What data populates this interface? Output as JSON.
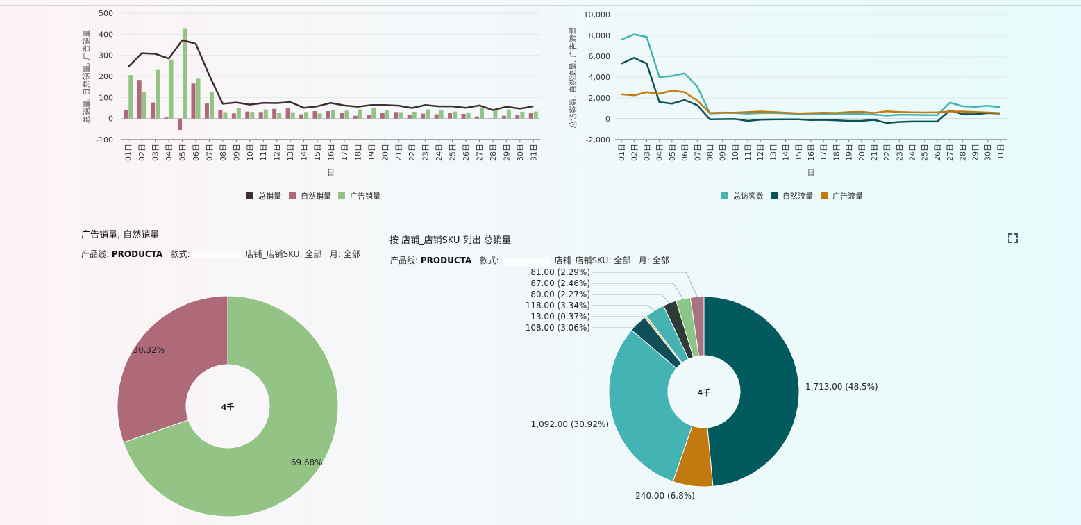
{
  "chart_data": [
    {
      "type": "bar",
      "ylabel": "总销量, 自然销量, 广告销量",
      "xlabel": "日",
      "ylim": [
        -100,
        500
      ],
      "yticks": [
        "500",
        "400",
        "300",
        "200",
        "100",
        "0",
        "-100"
      ],
      "categories": [
        "01日",
        "02日",
        "03日",
        "04日",
        "05日",
        "06日",
        "07日",
        "08日",
        "09日",
        "10日",
        "11日",
        "12日",
        "13日",
        "14日",
        "15日",
        "16日",
        "17日",
        "18日",
        "19日",
        "20日",
        "21日",
        "22日",
        "23日",
        "24日",
        "25日",
        "26日",
        "27日",
        "28日",
        "29日",
        "30日",
        "31日"
      ],
      "series": [
        {
          "name": "总销量",
          "kind": "line",
          "color": "#3d2f2c",
          "values": [
            245,
            310,
            307,
            285,
            372,
            355,
            205,
            70,
            76,
            66,
            74,
            73,
            78,
            51,
            58,
            74,
            62,
            56,
            64,
            64,
            61,
            50,
            64,
            58,
            58,
            51,
            62,
            40,
            56,
            47,
            58
          ]
        },
        {
          "name": "自然销量",
          "kind": "bar",
          "color": "#ae6a78",
          "values": [
            40,
            183,
            76,
            5,
            -54,
            166,
            71,
            40,
            24,
            33,
            31,
            46,
            48,
            20,
            35,
            35,
            27,
            13,
            17,
            26,
            31,
            18,
            23,
            20,
            26,
            22,
            10,
            0,
            13,
            15,
            25
          ]
        },
        {
          "name": "广告销量",
          "kind": "bar",
          "color": "#93c385",
          "values": [
            206,
            127,
            231,
            280,
            426,
            189,
            126,
            30,
            52,
            31,
            43,
            27,
            30,
            31,
            24,
            40,
            37,
            43,
            49,
            38,
            30,
            32,
            43,
            38,
            33,
            29,
            52,
            40,
            43,
            32,
            33
          ]
        }
      ],
      "legend_position": "bottom"
    },
    {
      "type": "line",
      "ylabel": "总访客数, 自然流量, 广告流量",
      "xlabel": "日",
      "ylim": [
        -2000,
        10000
      ],
      "yticks": [
        "10,000",
        "8,000",
        "6,000",
        "4,000",
        "2,000",
        "0",
        "-2,000"
      ],
      "categories": [
        "01日",
        "02日",
        "03日",
        "04日",
        "05日",
        "06日",
        "07日",
        "08日",
        "09日",
        "10日",
        "11日",
        "12日",
        "13日",
        "14日",
        "15日",
        "16日",
        "17日",
        "18日",
        "19日",
        "20日",
        "21日",
        "22日",
        "23日",
        "24日",
        "25日",
        "26日",
        "27日",
        "28日",
        "29日",
        "30日",
        "31日"
      ],
      "series": [
        {
          "name": "总访客数",
          "color": "#46b3b3",
          "values": [
            7600,
            8100,
            7850,
            4000,
            4100,
            4350,
            3100,
            500,
            560,
            560,
            480,
            560,
            560,
            520,
            460,
            420,
            460,
            420,
            470,
            450,
            400,
            300,
            380,
            380,
            350,
            350,
            1550,
            1200,
            1150,
            1250,
            1100
          ]
        },
        {
          "name": "自然流量",
          "color": "#0b5156",
          "values": [
            5300,
            5850,
            5300,
            1600,
            1450,
            1800,
            1300,
            -50,
            -30,
            -20,
            -200,
            -80,
            -60,
            -50,
            -50,
            -120,
            -100,
            -140,
            -200,
            -200,
            -100,
            -400,
            -300,
            -260,
            -260,
            -260,
            800,
            450,
            430,
            550,
            500
          ]
        },
        {
          "name": "广告流量",
          "color": "#c07a10",
          "values": [
            2350,
            2250,
            2550,
            2400,
            2700,
            2550,
            1750,
            550,
            590,
            580,
            640,
            700,
            650,
            580,
            520,
            550,
            580,
            560,
            640,
            670,
            560,
            720,
            650,
            620,
            600,
            620,
            700,
            700,
            650,
            600,
            550
          ]
        }
      ],
      "legend_position": "bottom"
    },
    {
      "type": "pie",
      "title": "广告销量, 自然销量",
      "center_label": "4千",
      "slices": [
        {
          "name": "广告销量",
          "value": 69.68,
          "label": "69.68%",
          "color": "#93c385"
        },
        {
          "name": "自然销量",
          "value": 30.32,
          "label": "30.32%",
          "color": "#ae6a78"
        }
      ]
    },
    {
      "type": "pie",
      "title": "按 店铺_店铺SKU 列出 总销量",
      "center_label": "4千",
      "slices": [
        {
          "value": 1713,
          "label": "1,713.00 (48.5%)",
          "color": "#025a5e"
        },
        {
          "value": 240,
          "label": "240.00 (6.8%)",
          "color": "#c07a10"
        },
        {
          "value": 1092,
          "label": "1,092.00 (30.92%)",
          "color": "#44b3b3"
        },
        {
          "value": 108,
          "label": "108.00 (3.06%)",
          "color": "#0e4e57"
        },
        {
          "value": 13,
          "label": "13.00 (0.37%)",
          "color": "#e8c07a"
        },
        {
          "value": 118,
          "label": "118.00 (3.34%)",
          "color": "#46b3b3"
        },
        {
          "value": 80,
          "label": "80.00 (2.27%)",
          "color": "#2f3b37"
        },
        {
          "value": 87,
          "label": "87.00 (2.46%)",
          "color": "#8cc587"
        },
        {
          "value": 81,
          "label": "81.00 (2.29%)",
          "color": "#a87380"
        }
      ]
    }
  ],
  "pie1_filters": {
    "line_label": "产品线:",
    "line_value": "PRODUCTA",
    "style_label": "款式:",
    "store_label": "店铺_店铺SKU: 全部",
    "month_label": "月: 全部"
  },
  "pie2_filters": {
    "line_label": "产品线:",
    "line_value": "PRODUCTA",
    "style_label": "款式:",
    "store_label": "店铺_店铺SKU: 全部",
    "month_label": "月: 全部"
  }
}
